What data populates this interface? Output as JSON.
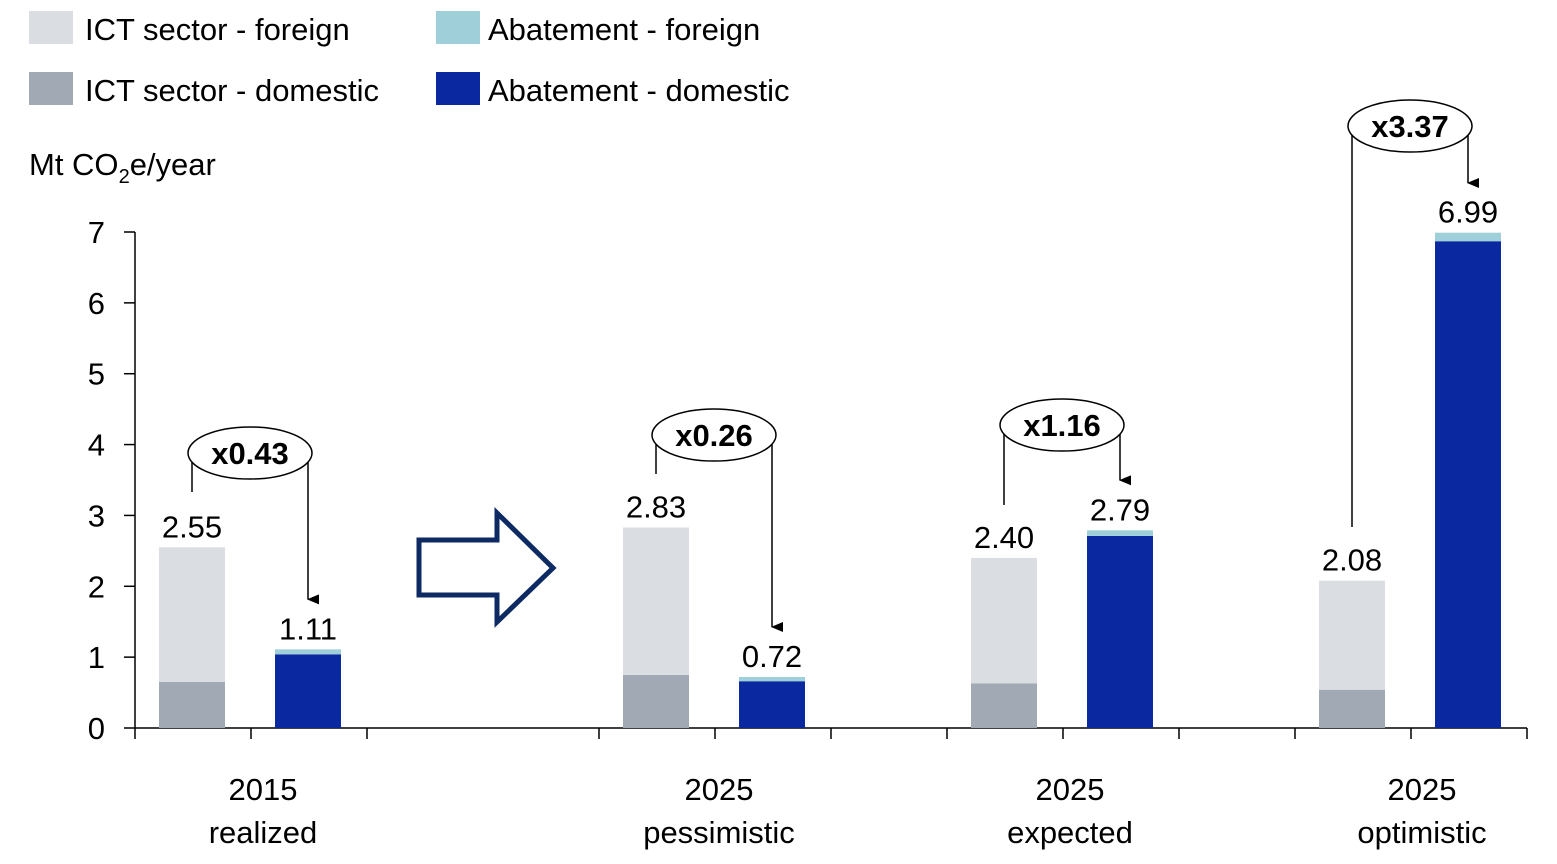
{
  "chart_data": {
    "type": "bar",
    "stacked": true,
    "ylabel_prefix": "Mt CO",
    "ylabel_sub": "2",
    "ylabel_suffix": "e/year",
    "ylim": [
      0,
      7
    ],
    "yticks": [
      0,
      1,
      2,
      3,
      4,
      5,
      6,
      7
    ],
    "grid": false,
    "legend_position": "top-left",
    "legend": [
      {
        "name": "ICT sector - foreign",
        "color": "#dadde2"
      },
      {
        "name": "Abatement - foreign",
        "color": "#9fd0d9"
      },
      {
        "name": "ICT sector - domestic",
        "color": "#a1aab4"
      },
      {
        "name": "Abatement - domestic",
        "color": "#0a28a0"
      }
    ],
    "groups": [
      {
        "label_line1": "2015",
        "label_line2": "realized",
        "ict": {
          "total": 2.55,
          "domestic": 0.65,
          "foreign": 1.9,
          "label": "2.55"
        },
        "abatement": {
          "total": 1.11,
          "domestic": 1.04,
          "foreign": 0.07,
          "label": "1.11"
        },
        "ratio": "x0.43"
      },
      {
        "label_line1": "2025",
        "label_line2": "pessimistic",
        "ict": {
          "total": 2.83,
          "domestic": 0.75,
          "foreign": 2.08,
          "label": "2.83"
        },
        "abatement": {
          "total": 0.72,
          "domestic": 0.66,
          "foreign": 0.06,
          "label": "0.72"
        },
        "ratio": "x0.26"
      },
      {
        "label_line1": "2025",
        "label_line2": "expected",
        "ict": {
          "total": 2.4,
          "domestic": 0.63,
          "foreign": 1.77,
          "label": "2.40"
        },
        "abatement": {
          "total": 2.79,
          "domestic": 2.71,
          "foreign": 0.08,
          "label": "2.79"
        },
        "ratio": "x1.16"
      },
      {
        "label_line1": "2025",
        "label_line2": "optimistic",
        "ict": {
          "total": 2.08,
          "domestic": 0.54,
          "foreign": 1.54,
          "label": "2.08"
        },
        "abatement": {
          "total": 6.99,
          "domestic": 6.87,
          "foreign": 0.12,
          "label": "6.99"
        },
        "ratio": "x3.37"
      }
    ]
  }
}
